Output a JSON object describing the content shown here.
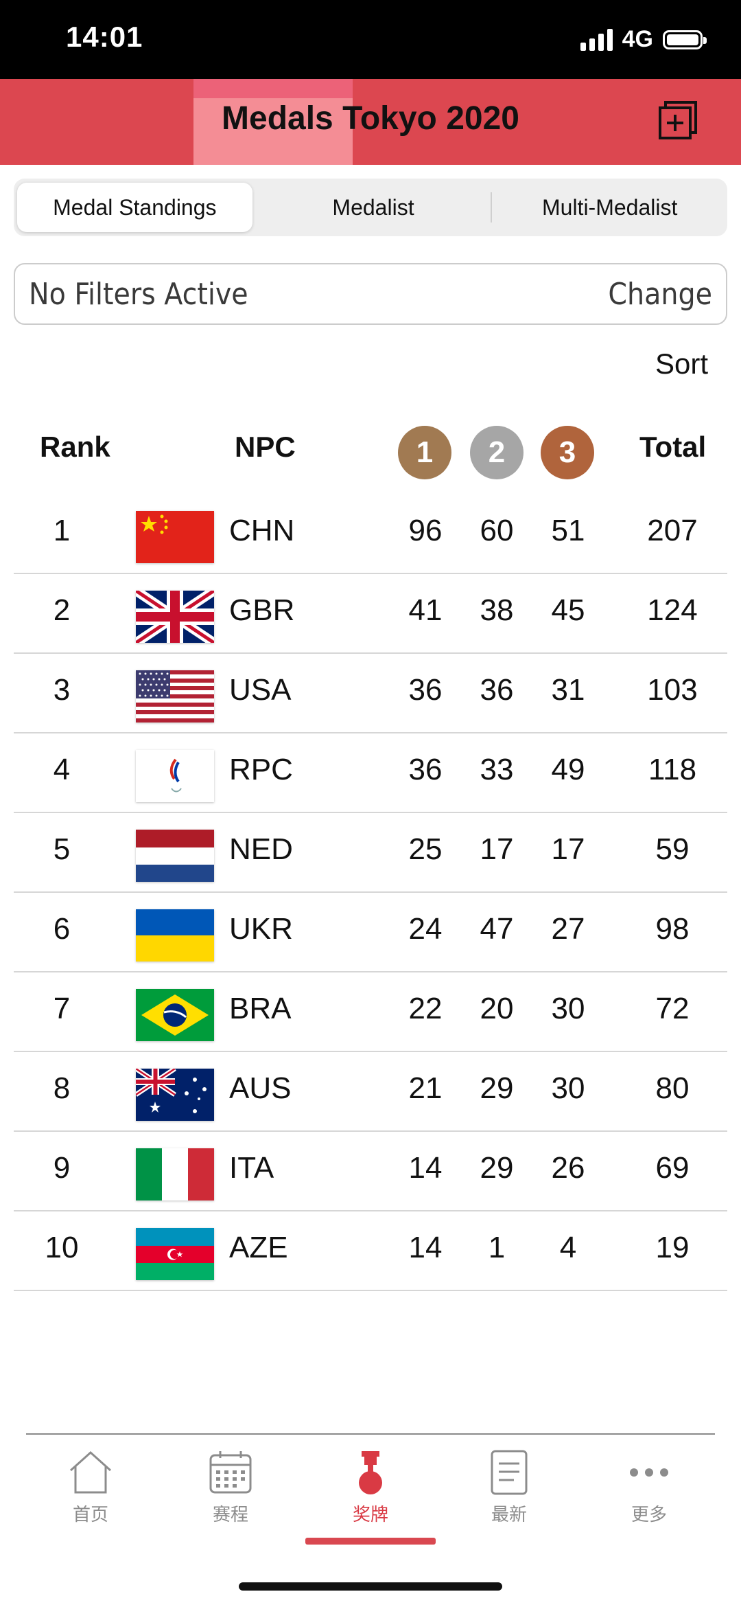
{
  "status_bar": {
    "time": "14:01",
    "network": "4G"
  },
  "header": {
    "title": "Medals Tokyo 2020"
  },
  "tabs": [
    {
      "label": "Medal Standings",
      "active": true
    },
    {
      "label": "Medalist",
      "active": false
    },
    {
      "label": "Multi-Medalist",
      "active": false
    }
  ],
  "filter": {
    "status": "No Filters Active",
    "change_label": "Change"
  },
  "sort_label": "Sort",
  "table": {
    "headers": {
      "rank": "Rank",
      "npc": "NPC",
      "total": "Total"
    },
    "medal_icons": {
      "gold": "1",
      "silver": "2",
      "bronze": "3"
    },
    "rows": [
      {
        "rank": "1",
        "code": "CHN",
        "flag": "china-flag",
        "gold": "96",
        "silver": "60",
        "bronze": "51",
        "total": "207"
      },
      {
        "rank": "2",
        "code": "GBR",
        "flag": "uk-flag",
        "gold": "41",
        "silver": "38",
        "bronze": "45",
        "total": "124"
      },
      {
        "rank": "3",
        "code": "USA",
        "flag": "usa-flag",
        "gold": "36",
        "silver": "36",
        "bronze": "31",
        "total": "103"
      },
      {
        "rank": "4",
        "code": "RPC",
        "flag": "rpc-flag",
        "gold": "36",
        "silver": "33",
        "bronze": "49",
        "total": "118"
      },
      {
        "rank": "5",
        "code": "NED",
        "flag": "netherlands-flag",
        "gold": "25",
        "silver": "17",
        "bronze": "17",
        "total": "59"
      },
      {
        "rank": "6",
        "code": "UKR",
        "flag": "ukraine-flag",
        "gold": "24",
        "silver": "47",
        "bronze": "27",
        "total": "98"
      },
      {
        "rank": "7",
        "code": "BRA",
        "flag": "brazil-flag",
        "gold": "22",
        "silver": "20",
        "bronze": "30",
        "total": "72"
      },
      {
        "rank": "8",
        "code": "AUS",
        "flag": "australia-flag",
        "gold": "21",
        "silver": "29",
        "bronze": "30",
        "total": "80"
      },
      {
        "rank": "9",
        "code": "ITA",
        "flag": "italy-flag",
        "gold": "14",
        "silver": "29",
        "bronze": "26",
        "total": "69"
      },
      {
        "rank": "10",
        "code": "AZE",
        "flag": "azerbaijan-flag",
        "gold": "14",
        "silver": "1",
        "bronze": "4",
        "total": "19"
      }
    ]
  },
  "bottom_nav": [
    {
      "label": "首页",
      "icon": "home-icon",
      "active": false
    },
    {
      "label": "赛程",
      "icon": "calendar-icon",
      "active": false
    },
    {
      "label": "奖牌",
      "icon": "medal-icon",
      "active": true
    },
    {
      "label": "最新",
      "icon": "news-icon",
      "active": false
    },
    {
      "label": "更多",
      "icon": "more-icon",
      "active": false
    }
  ],
  "colors": {
    "header": "#dc4750",
    "accent": "#d93a44",
    "gold": "#a17a52",
    "silver": "#a6a6a6",
    "bronze": "#b0643c"
  }
}
